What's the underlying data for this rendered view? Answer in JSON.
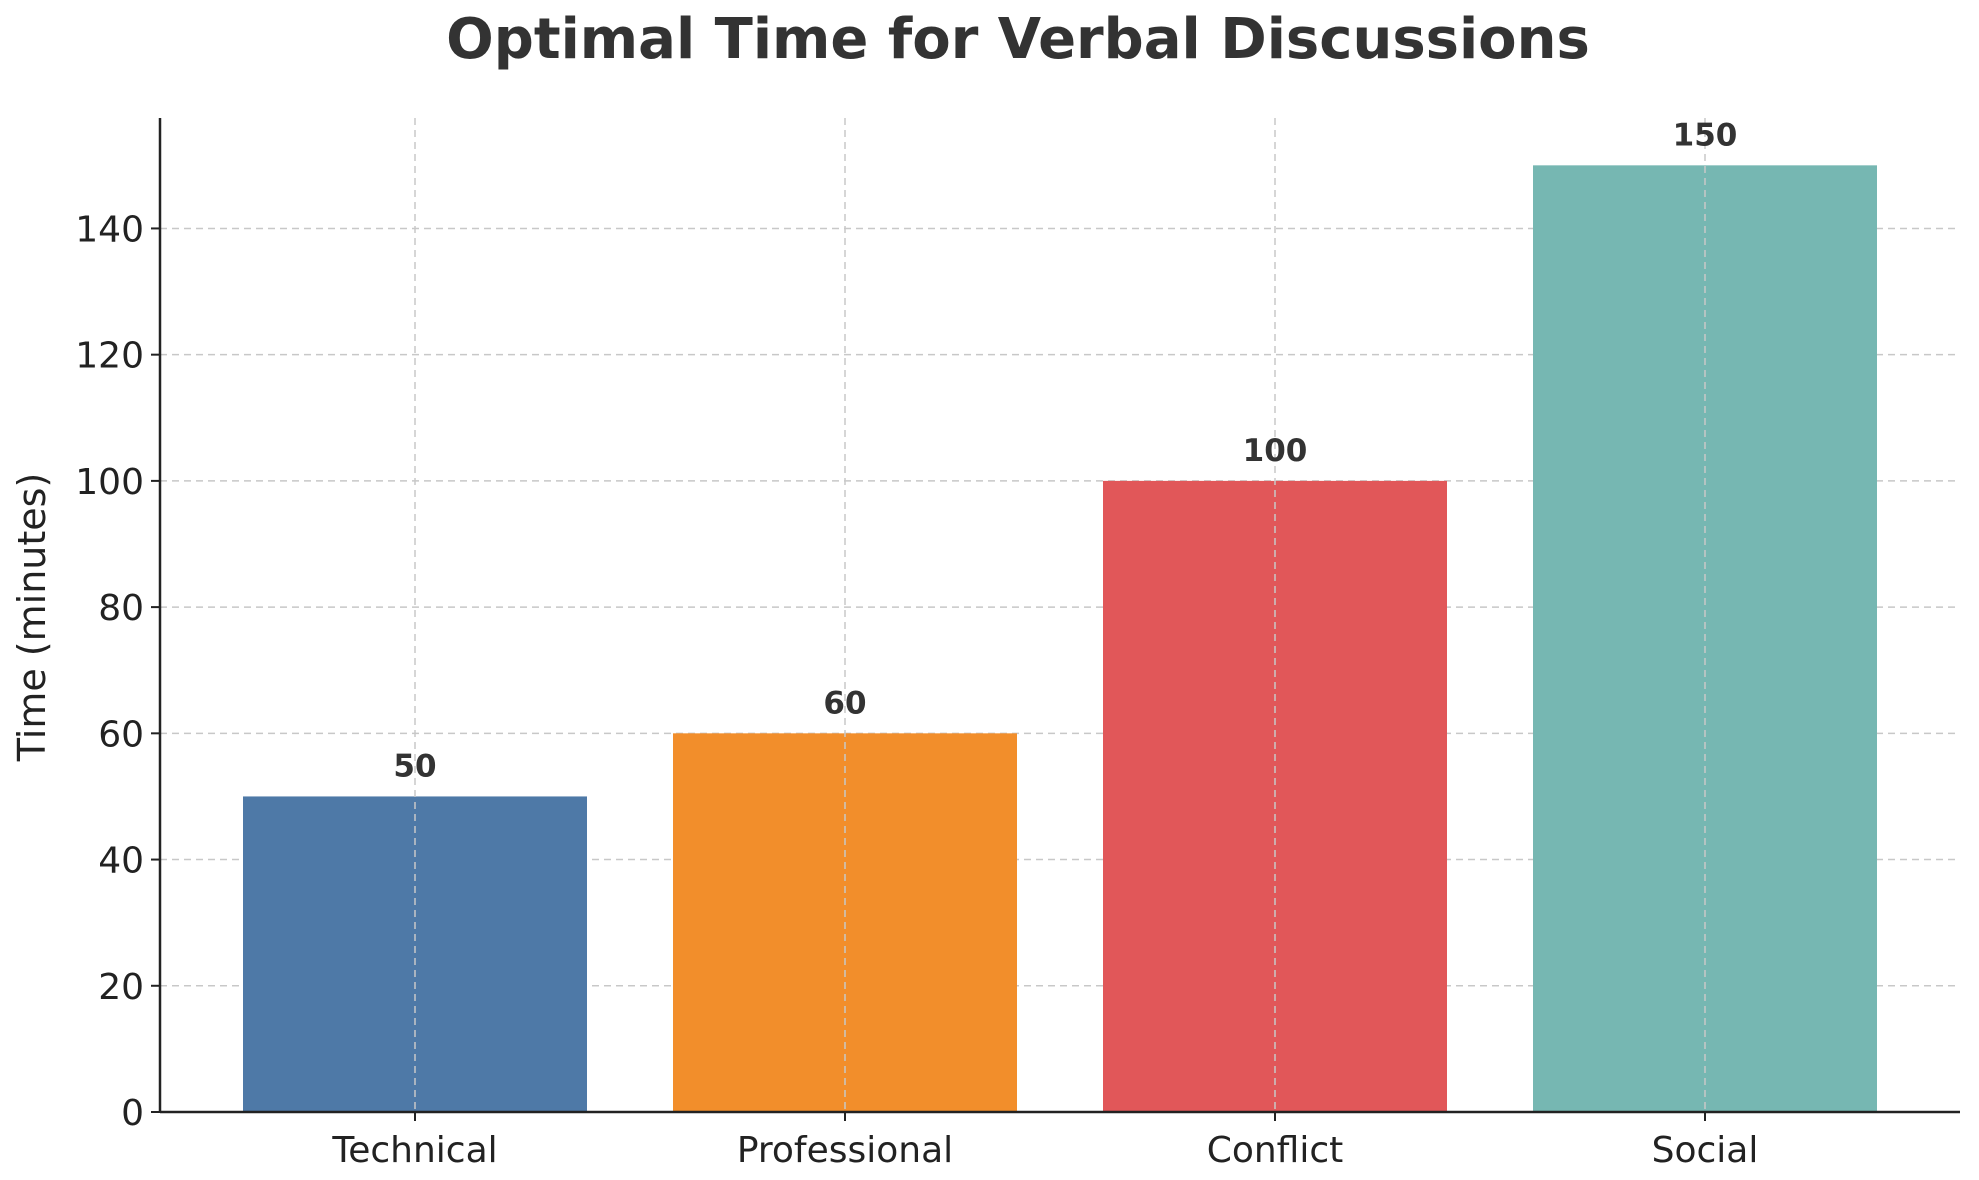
{
  "chart_data": {
    "type": "bar",
    "title": "Optimal Time for Verbal Discussions",
    "xlabel": "",
    "ylabel": "Time (minutes)",
    "categories": [
      "Technical",
      "Professional",
      "Conflict",
      "Social"
    ],
    "values": [
      50,
      60,
      100,
      150
    ],
    "data_labels": [
      "50",
      "60",
      "100",
      "150"
    ],
    "colors": [
      "#4e79a7",
      "#f28e2b",
      "#e15759",
      "#76b7b2"
    ],
    "ylim": [
      0,
      157.5
    ],
    "yticks": [
      0,
      20,
      40,
      60,
      80,
      100,
      120,
      140
    ],
    "ytick_labels": [
      "0",
      "20",
      "40",
      "60",
      "80",
      "100",
      "120",
      "140"
    ],
    "grid": true,
    "legend": "none"
  }
}
